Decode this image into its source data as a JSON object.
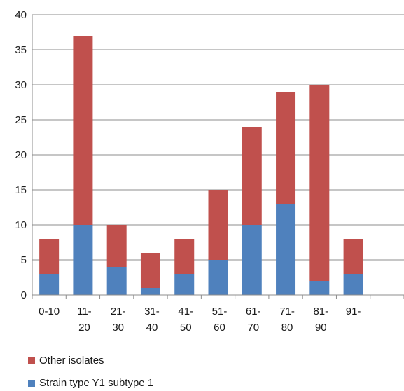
{
  "chart_data": {
    "type": "bar",
    "stacked": true,
    "categories": [
      [
        "0-10"
      ],
      [
        "11-",
        "20"
      ],
      [
        "21-",
        "30"
      ],
      [
        "31-",
        "40"
      ],
      [
        "41-",
        "50"
      ],
      [
        "51-",
        "60"
      ],
      [
        "61-",
        "70"
      ],
      [
        "71-",
        "80"
      ],
      [
        "81-",
        "90"
      ],
      [
        "91-"
      ],
      []
    ],
    "series": [
      {
        "name": "Strain type Y1 subtype 1",
        "color": "#4F81BD",
        "values": [
          3,
          10,
          4,
          1,
          3,
          5,
          10,
          13,
          2,
          3,
          null
        ]
      },
      {
        "name": "Other isolates",
        "color": "#C0504D",
        "values": [
          5,
          27,
          6,
          5,
          5,
          10,
          14,
          16,
          28,
          5,
          null
        ]
      }
    ],
    "ylim": [
      0,
      40
    ],
    "yticks": [
      0,
      5,
      10,
      15,
      20,
      25,
      30,
      35,
      40
    ],
    "grid": true,
    "legend_position": "bottom-left",
    "xlabel": "",
    "ylabel": "",
    "title": ""
  },
  "legend": {
    "items": [
      {
        "label": "Other isolates",
        "color": "#C0504D"
      },
      {
        "label": "Strain type Y1 subtype 1",
        "color": "#4F81BD"
      }
    ]
  }
}
